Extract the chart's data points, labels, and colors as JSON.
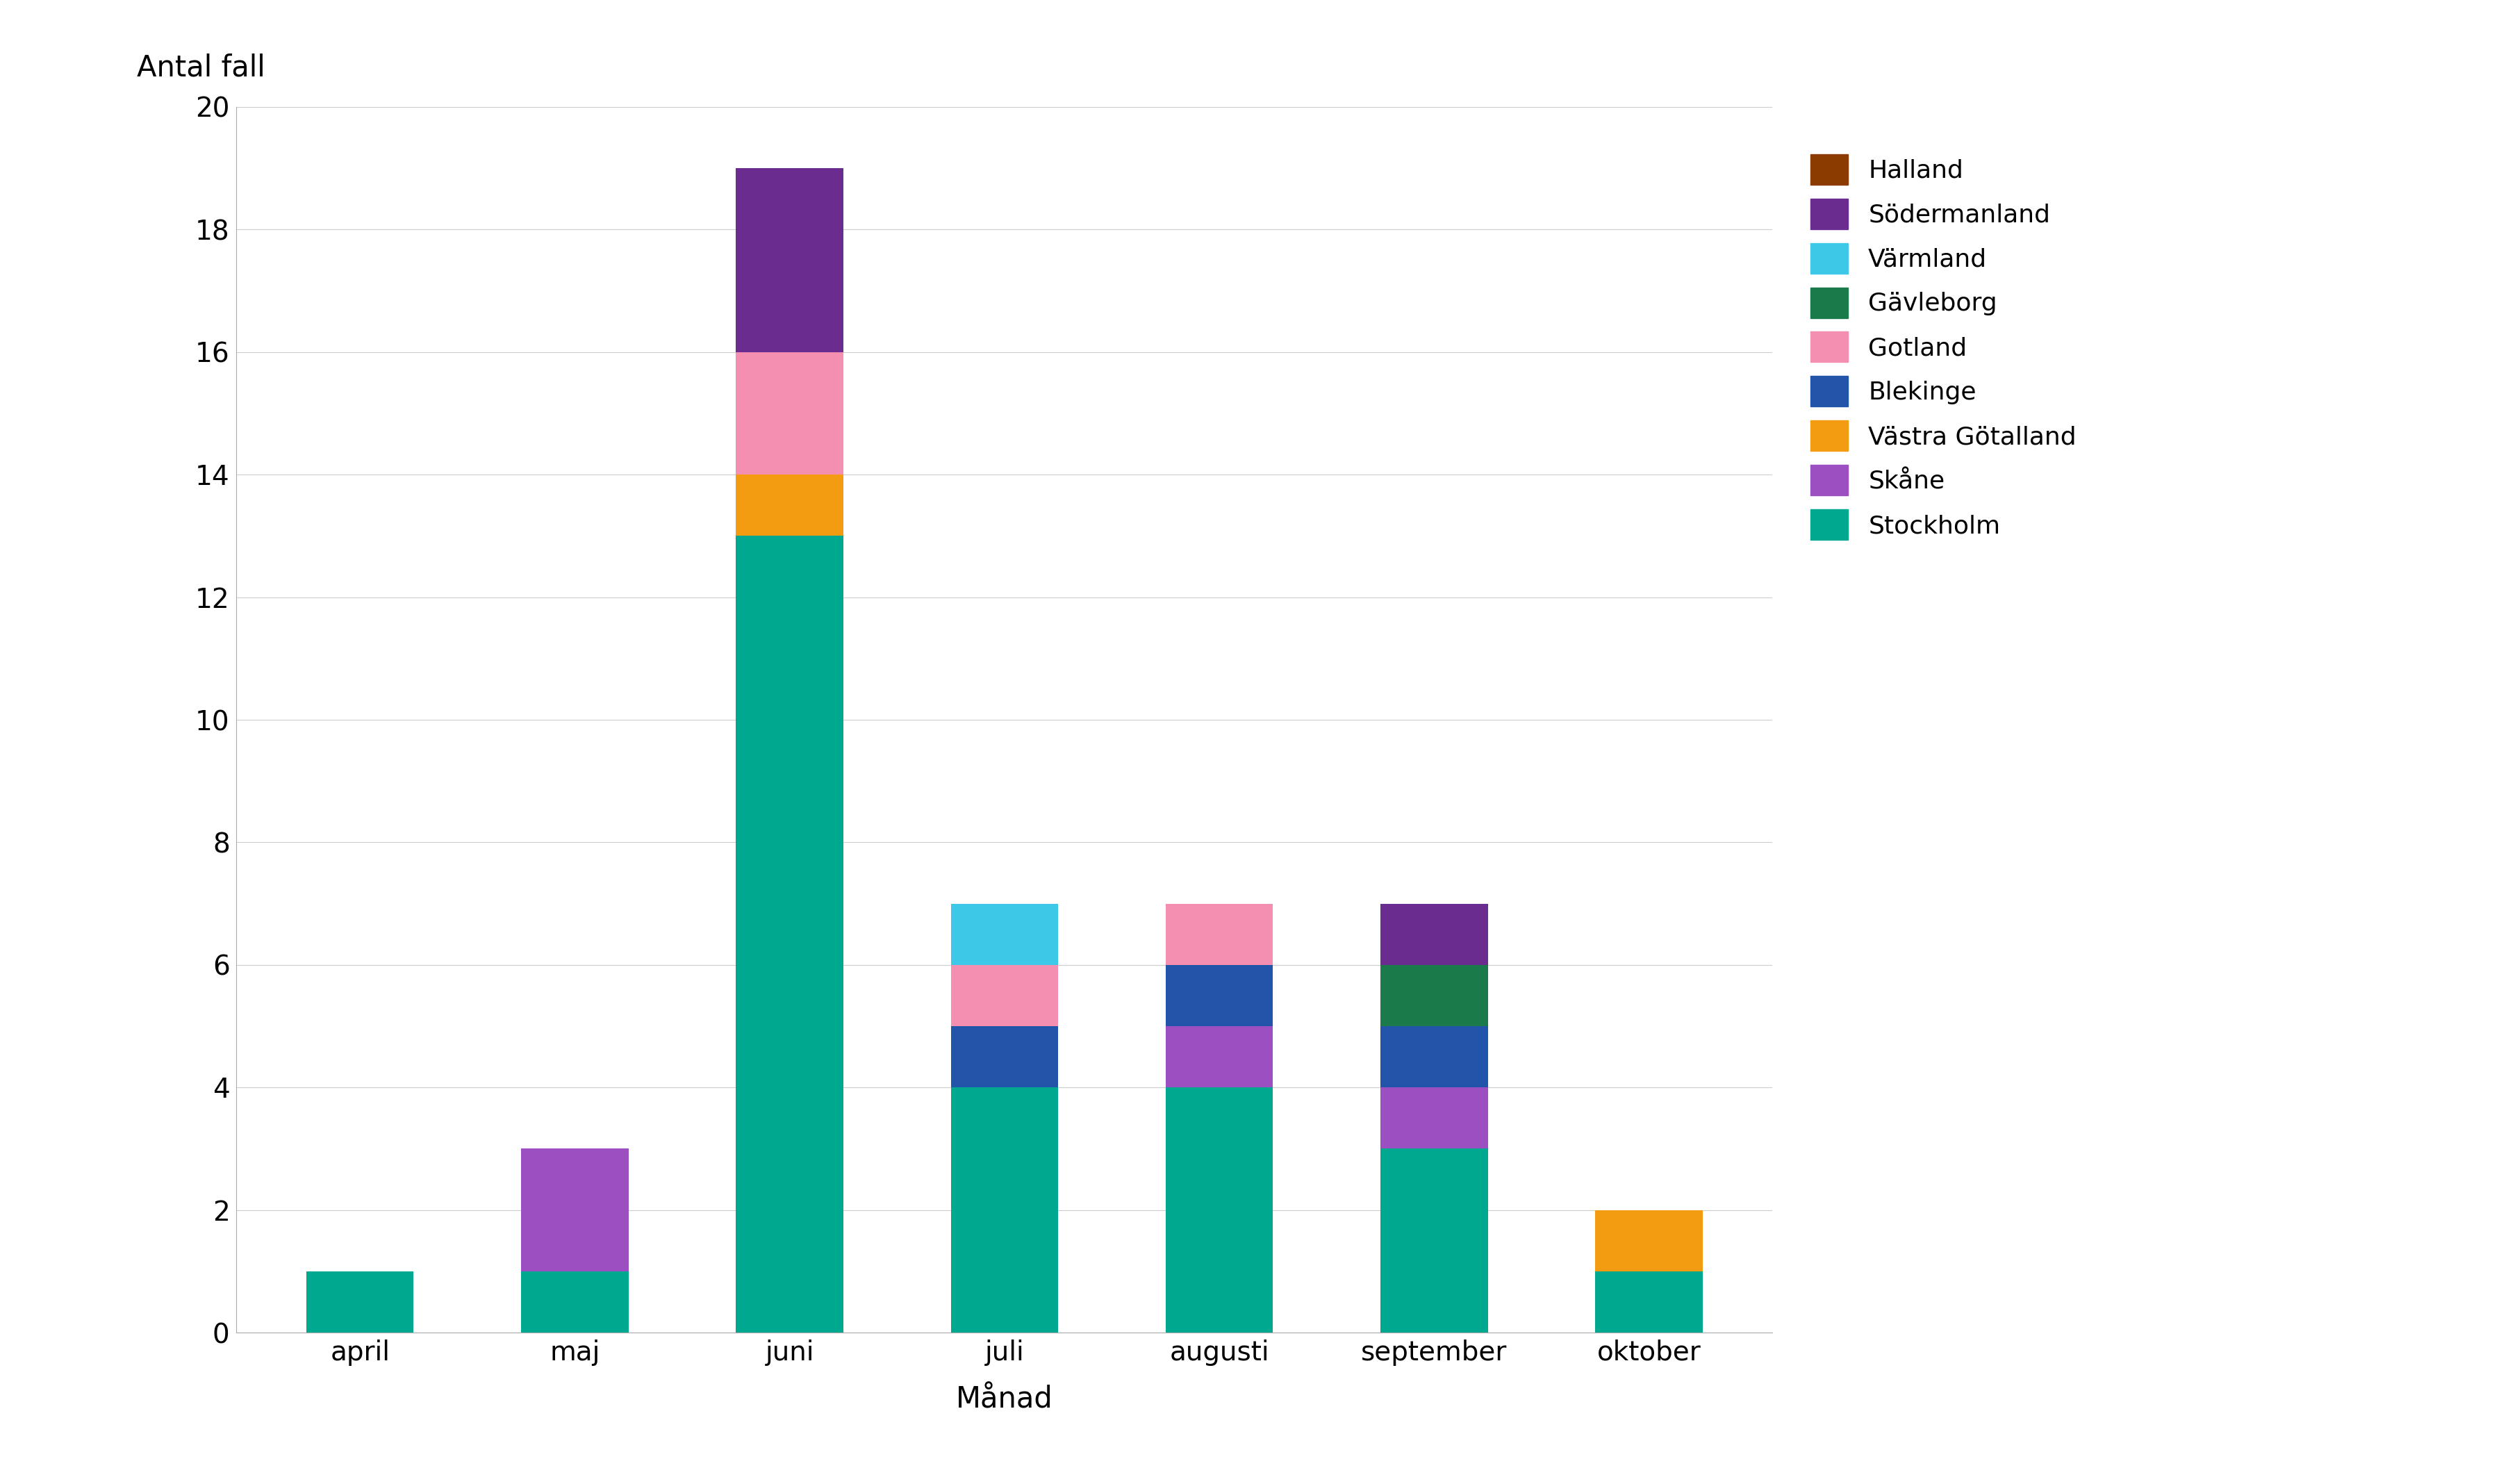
{
  "months": [
    "april",
    "maj",
    "juni",
    "juli",
    "augusti",
    "september",
    "oktober"
  ],
  "regions_order": [
    "Stockholm",
    "Skåne",
    "Västra Götalland",
    "Blekinge",
    "Gotland",
    "Gävleborg",
    "Värmland",
    "Södermanland",
    "Halland"
  ],
  "colors": {
    "Stockholm": "#00A88F",
    "Skåne": "#9B4FC0",
    "Västra Götalland": "#F39C12",
    "Blekinge": "#2255AA",
    "Gotland": "#F48FB1",
    "Gävleborg": "#1A7A4A",
    "Värmland": "#3EC8E8",
    "Södermanland": "#6A2D8F",
    "Halland": "#8B3A00"
  },
  "data": {
    "Stockholm": [
      1,
      1,
      13,
      4,
      4,
      3,
      1
    ],
    "Skåne": [
      0,
      2,
      0,
      0,
      1,
      1,
      0
    ],
    "Västra Götalland": [
      0,
      0,
      1,
      0,
      0,
      0,
      1
    ],
    "Blekinge": [
      0,
      0,
      0,
      1,
      1,
      1,
      0
    ],
    "Gotland": [
      0,
      0,
      2,
      1,
      1,
      0,
      0
    ],
    "Gävleborg": [
      0,
      0,
      0,
      0,
      0,
      1,
      0
    ],
    "Värmland": [
      0,
      0,
      0,
      1,
      0,
      0,
      0
    ],
    "Södermanland": [
      0,
      0,
      3,
      0,
      0,
      1,
      0
    ],
    "Halland": [
      0,
      0,
      0,
      0,
      0,
      0,
      0
    ]
  },
  "legend_order": [
    "Halland",
    "Södermanland",
    "Värmland",
    "Gävleborg",
    "Gotland",
    "Blekinge",
    "Västra Götalland",
    "Skåne",
    "Stockholm"
  ],
  "ylabel": "Antal fall",
  "xlabel": "Månad",
  "ylim": [
    0,
    20
  ],
  "yticks": [
    0,
    2,
    4,
    6,
    8,
    10,
    12,
    14,
    16,
    18,
    20
  ],
  "bar_width": 0.5,
  "background_color": "#FFFFFF",
  "grid_color": "#CCCCCC",
  "tick_fontsize": 28,
  "label_fontsize": 30,
  "legend_fontsize": 26
}
